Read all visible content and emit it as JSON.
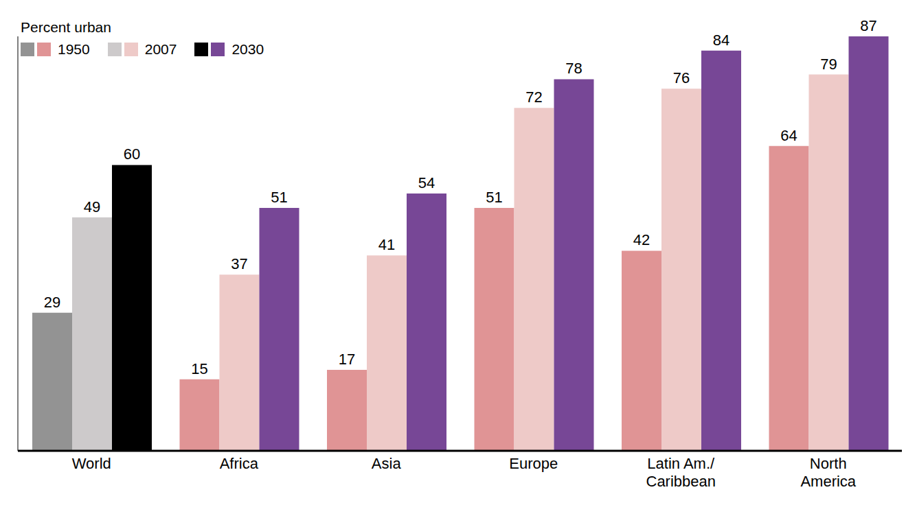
{
  "chart_data": {
    "type": "bar",
    "title": "Percent urban",
    "categories": [
      "World",
      "Africa",
      "Asia",
      "Europe",
      "Latin Am./\nCaribbean",
      "North\nAmerica"
    ],
    "series": [
      {
        "name": "1950",
        "values": [
          29,
          15,
          17,
          51,
          42,
          64
        ],
        "colors": [
          "#939393",
          "#e09495",
          "#e09495",
          "#e09495",
          "#e09495",
          "#e09495"
        ]
      },
      {
        "name": "2007",
        "values": [
          49,
          37,
          41,
          72,
          76,
          79
        ],
        "colors": [
          "#cdcacb",
          "#eecac8",
          "#eecac8",
          "#eecac8",
          "#eecac8",
          "#eecac8"
        ]
      },
      {
        "name": "2030",
        "values": [
          60,
          51,
          54,
          78,
          84,
          87
        ],
        "colors": [
          "#000000",
          "#774796",
          "#774796",
          "#774796",
          "#774796",
          "#774796"
        ]
      }
    ],
    "ylim": [
      0,
      87
    ],
    "data_labels": true,
    "tick_labels": "x",
    "grid": false
  }
}
